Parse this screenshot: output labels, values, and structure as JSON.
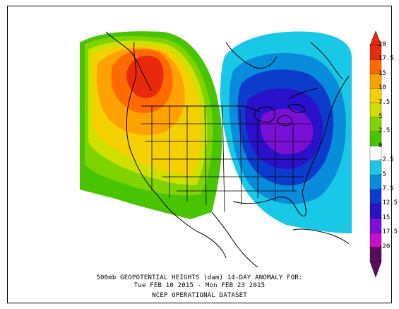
{
  "title": {
    "line1": "500mb GEOPOTENTIAL HEIGHTS (dam)   14-DAY ANOMALY FOR:",
    "line2": "Tue FEB 10 2015 - Mon FEB 23 2015",
    "line3": "NCEP OPERATIONAL DATASET"
  },
  "colorbar": {
    "levels": [
      {
        "label": "20",
        "color": "#e8290c"
      },
      {
        "label": "17.5",
        "color": "#ff6a00"
      },
      {
        "label": "15",
        "color": "#ffa200"
      },
      {
        "label": "10",
        "color": "#f5d000"
      },
      {
        "label": "7.5",
        "color": "#cfe000"
      },
      {
        "label": "5",
        "color": "#7fd400"
      },
      {
        "label": "2.5",
        "color": "#48c400"
      },
      {
        "label": "0",
        "color": "#ffffff"
      },
      {
        "label": "-2.5",
        "color": "#19c8e6"
      },
      {
        "label": "-5",
        "color": "#0a8cdc"
      },
      {
        "label": "-7.5",
        "color": "#0c3ccc"
      },
      {
        "label": "-12.5",
        "color": "#2a10c8"
      },
      {
        "label": "-15",
        "color": "#7a10d6"
      },
      {
        "label": "-17.5",
        "color": "#c810c8"
      },
      {
        "label": "-20",
        "color": "#5c0a5c"
      }
    ]
  }
}
